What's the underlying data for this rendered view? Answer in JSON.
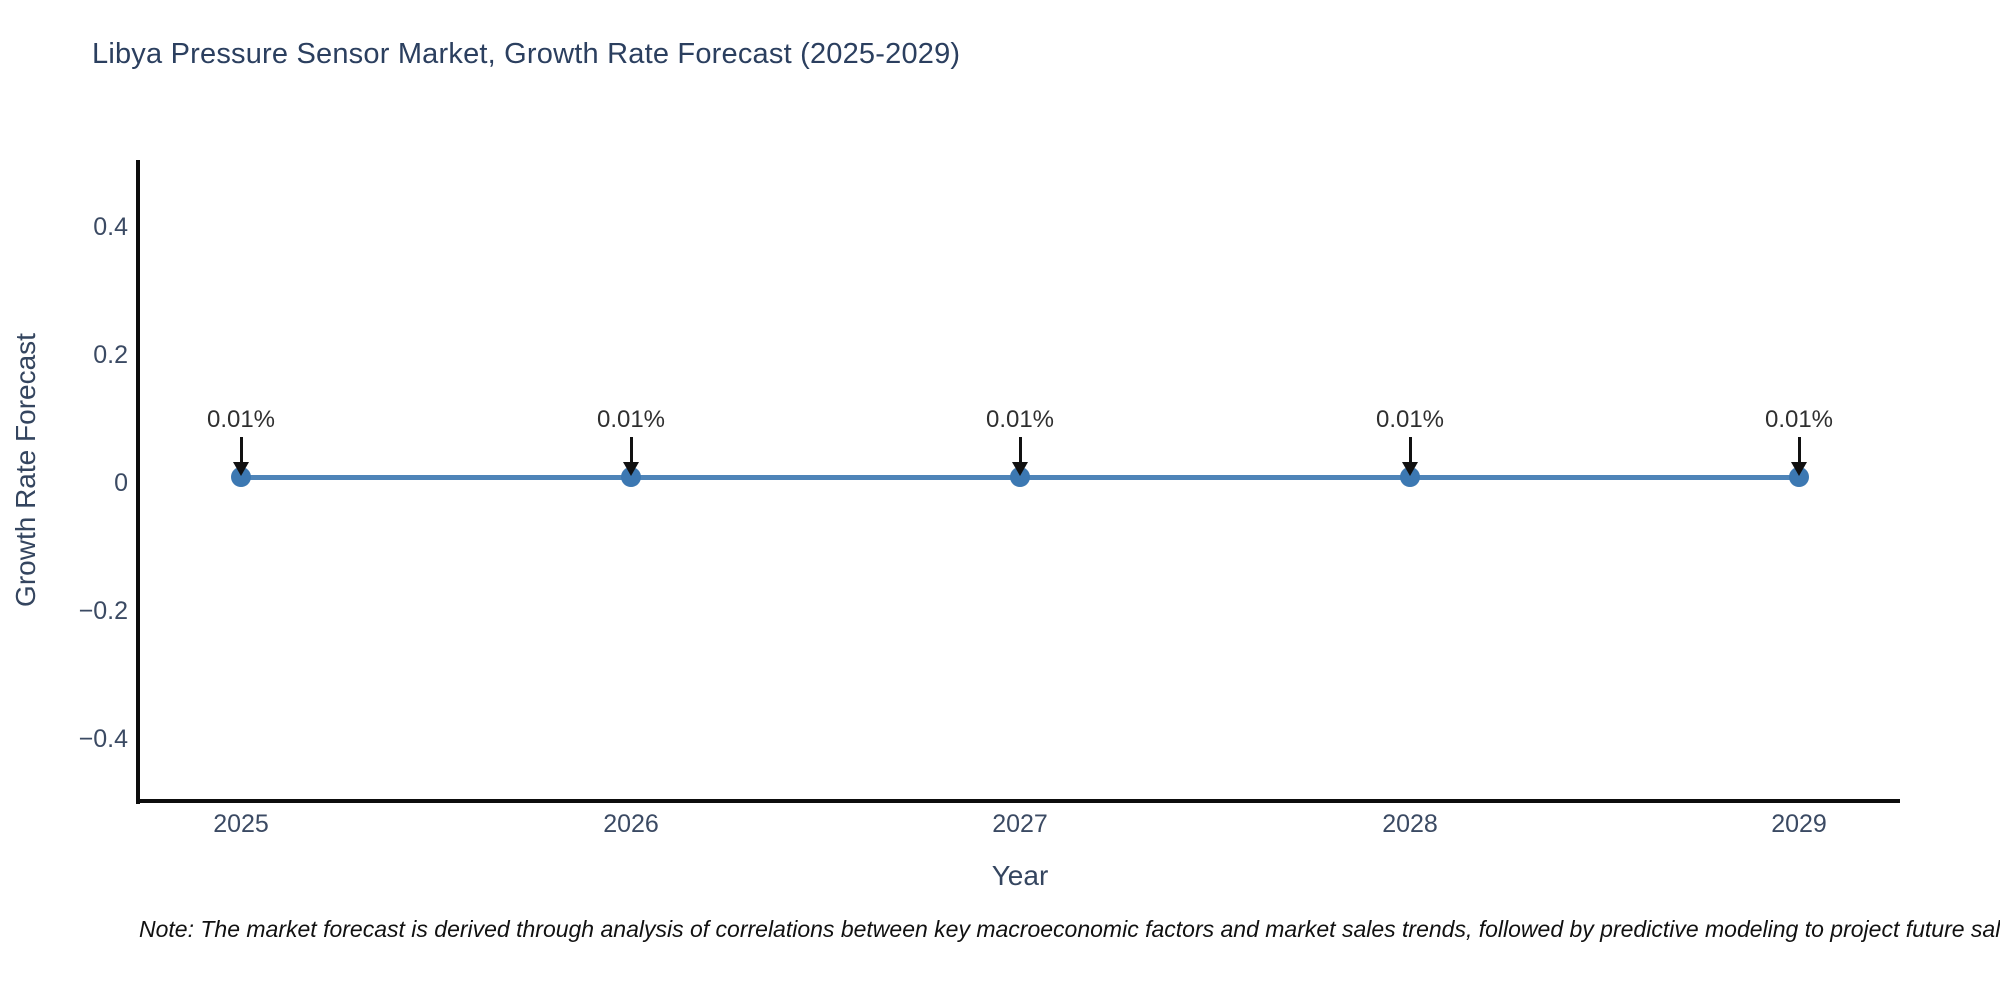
{
  "title": "Libya Pressure Sensor Market, Growth Rate Forecast (2025-2029)",
  "note": "Note: The market forecast is derived through analysis of correlations between key macroeconomic factors and market sales trends, followed by predictive modeling to project future sales",
  "colors": {
    "background": "#ffffff",
    "title_text": "#2b3f5f",
    "axis_line": "#0d0d0d",
    "tick_text": "#3b4a63",
    "line": "#4e84b8",
    "marker": "#3c78b2",
    "annotation_text": "#2f2f2f",
    "annotation_arrow": "#111111"
  },
  "chart_data": {
    "type": "line",
    "title": "Libya Pressure Sensor Market, Growth Rate Forecast (2025-2029)",
    "xlabel": "Year",
    "ylabel": "Growth Rate Forecast",
    "x": [
      2025,
      2026,
      2027,
      2028,
      2029
    ],
    "x_tick_labels": [
      "2025",
      "2026",
      "2027",
      "2028",
      "2029"
    ],
    "series": [
      {
        "name": "Growth Rate Forecast",
        "values": [
          0.01,
          0.01,
          0.01,
          0.01,
          0.01
        ]
      }
    ],
    "point_labels": [
      "0.01%",
      "0.01%",
      "0.01%",
      "0.01%",
      "0.01%"
    ],
    "y_ticks": [
      "0.4",
      "0.2",
      "0",
      "−0.2",
      "−0.4"
    ],
    "y_tick_values": [
      0.4,
      0.2,
      0,
      -0.2,
      -0.4
    ],
    "ylim": [
      -0.5,
      0.5
    ],
    "grid": false,
    "legend_position": "none",
    "units": "%",
    "annotation_style": "value label with downward arrow onto each marker"
  }
}
